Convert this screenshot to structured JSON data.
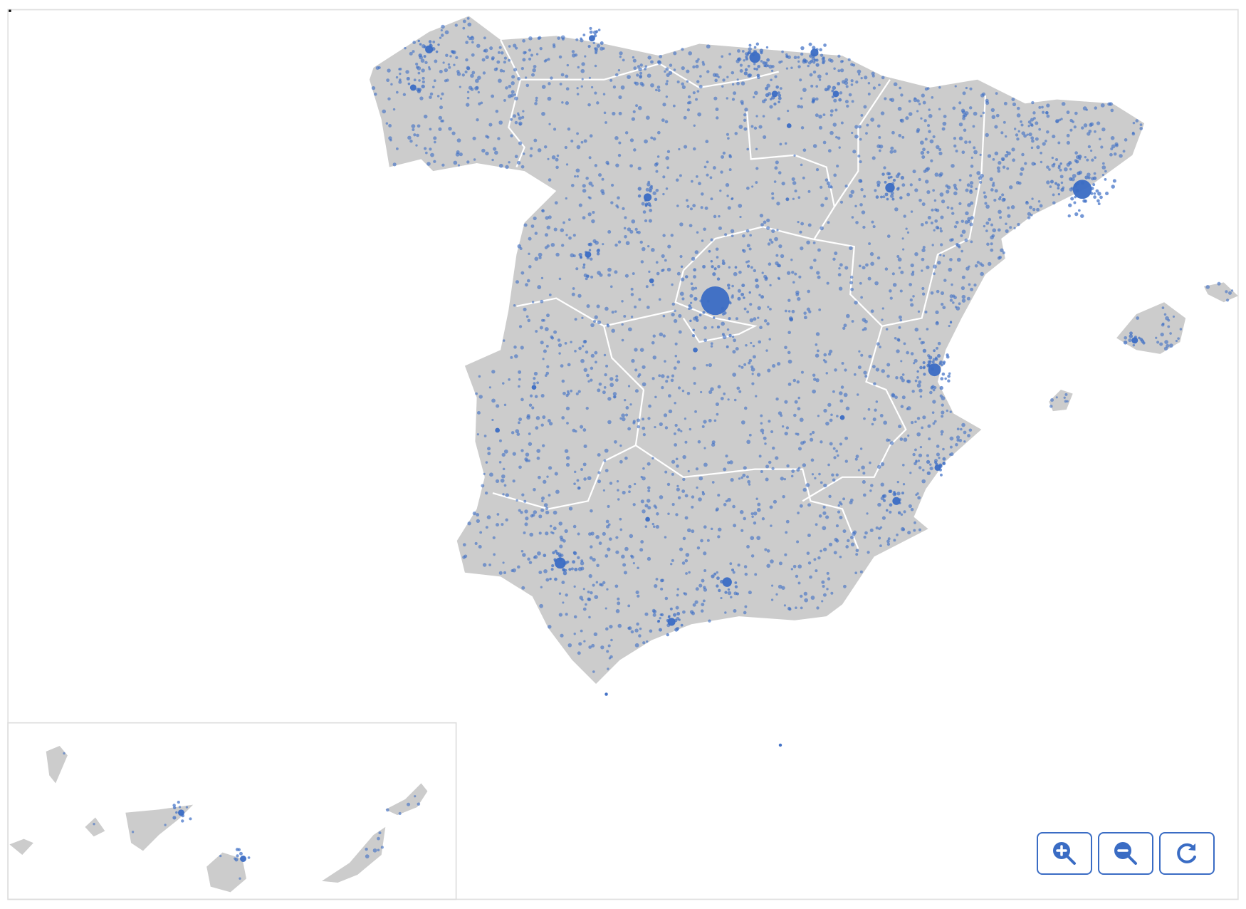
{
  "map": {
    "land_color": "#cccccc",
    "border_color": "#ffffff",
    "dot_color": "#3a6cc4",
    "inset": "canary-islands"
  },
  "controls": [
    {
      "name": "zoom-in",
      "icon": "zoom-in-icon"
    },
    {
      "name": "zoom-out",
      "icon": "zoom-out-icon"
    },
    {
      "name": "reset",
      "icon": "reset-icon"
    }
  ]
}
